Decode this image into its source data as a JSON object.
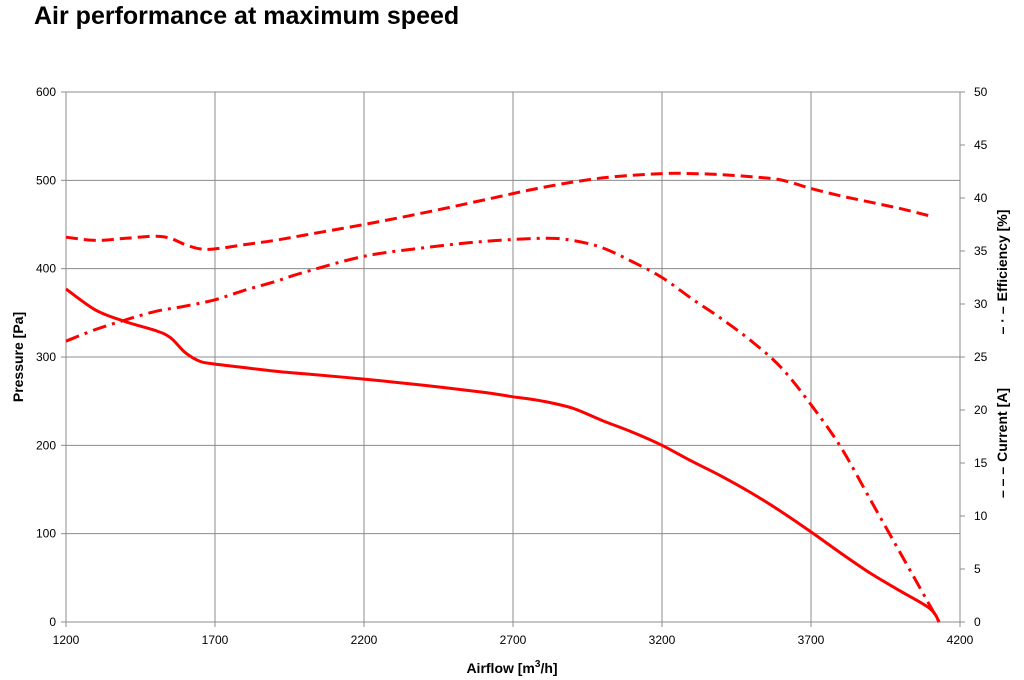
{
  "page": {
    "title": "Air performance at maximum speed"
  },
  "chart_data": {
    "type": "line",
    "title": "Air performance at maximum speed",
    "xlabel": "Airflow [m3/h]",
    "ylabel": "Pressure [Pa]",
    "y2label_efficiency": "Efficiency [%]",
    "y2label_current": "Current [A]",
    "y2label_efficiency_marker": "– · –",
    "y2label_current_marker": "– – –",
    "xlim": [
      1200,
      4200
    ],
    "ylim": [
      0,
      600
    ],
    "y2lim": [
      0,
      50
    ],
    "x_ticks": [
      1200,
      1700,
      2200,
      2700,
      3200,
      3700,
      4200
    ],
    "y_ticks": [
      0,
      100,
      200,
      300,
      400,
      500,
      600
    ],
    "y2_ticks": [
      0,
      5,
      10,
      15,
      20,
      25,
      30,
      35,
      40,
      45,
      50
    ],
    "grid": true,
    "legend": "none",
    "color": "#ff0000",
    "series": [
      {
        "name": "Pressure [Pa]",
        "axis": "left",
        "style": "solid",
        "x": [
          1200,
          1300,
          1400,
          1500,
          1550,
          1600,
          1650,
          1700,
          1800,
          1900,
          2000,
          2200,
          2400,
          2600,
          2700,
          2800,
          2900,
          3000,
          3100,
          3200,
          3300,
          3400,
          3500,
          3600,
          3700,
          3800,
          3900,
          4000,
          4100,
          4130
        ],
        "y": [
          377,
          353,
          340,
          330,
          322,
          305,
          295,
          292,
          288,
          284,
          281,
          275,
          268,
          260,
          255,
          250,
          242,
          228,
          215,
          200,
          182,
          165,
          146,
          125,
          102,
          78,
          55,
          35,
          15,
          0
        ]
      },
      {
        "name": "Current [A]",
        "axis": "right",
        "style": "dash",
        "x": [
          1200,
          1300,
          1400,
          1500,
          1550,
          1600,
          1650,
          1700,
          1800,
          1900,
          2000,
          2200,
          2400,
          2600,
          2800,
          3000,
          3200,
          3300,
          3400,
          3500,
          3600,
          3700,
          3800,
          3900,
          4000,
          4100
        ],
        "y": [
          36.3,
          36.0,
          36.2,
          36.4,
          36.2,
          35.6,
          35.2,
          35.2,
          35.6,
          36.0,
          36.5,
          37.5,
          38.6,
          39.8,
          41.0,
          41.9,
          42.3,
          42.3,
          42.2,
          42.0,
          41.7,
          40.9,
          40.2,
          39.6,
          39.0,
          38.3
        ]
      },
      {
        "name": "Efficiency [%]",
        "axis": "right",
        "style": "dashdot",
        "x": [
          1200,
          1300,
          1400,
          1500,
          1600,
          1700,
          1800,
          1900,
          2000,
          2200,
          2400,
          2600,
          2800,
          2900,
          3000,
          3100,
          3200,
          3300,
          3400,
          3500,
          3600,
          3700,
          3800,
          3900,
          4000,
          4130
        ],
        "y": [
          26.5,
          27.6,
          28.5,
          29.3,
          29.8,
          30.4,
          31.3,
          32.1,
          33.0,
          34.5,
          35.3,
          35.9,
          36.2,
          36.0,
          35.3,
          34.0,
          32.5,
          30.5,
          28.6,
          26.5,
          24.0,
          20.5,
          16.5,
          11.5,
          6.5,
          0
        ]
      }
    ]
  }
}
